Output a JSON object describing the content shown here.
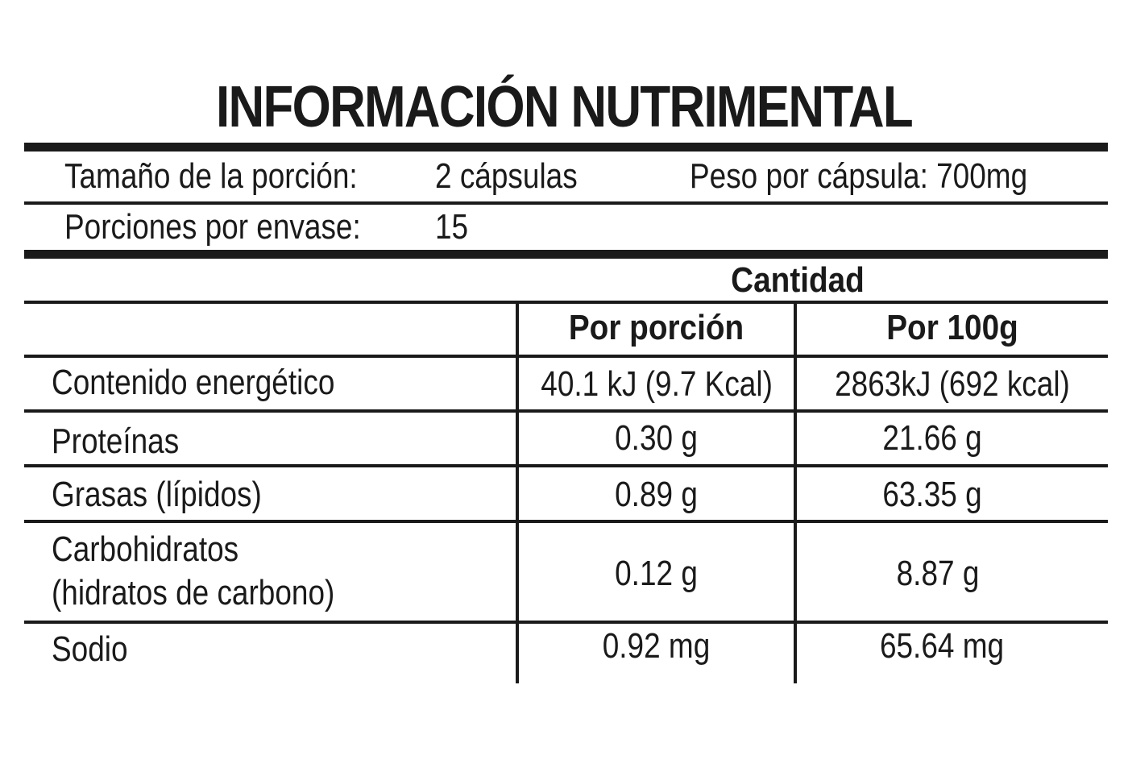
{
  "title": "INFORMACIÓN NUTRIMENTAL",
  "serving": {
    "size_label": "Tamaño de la porción:",
    "size_value": "2 cápsulas",
    "weight_text": "Peso por cápsula: 700mg",
    "servings_label": "Porciones por envase:",
    "servings_value": "15"
  },
  "table": {
    "group_header": "Cantidad",
    "columns": [
      "Por porción",
      "Por 100g"
    ],
    "rows": [
      {
        "name": "Contenido energético",
        "per_serving": "40.1 kJ (9.7 Kcal)",
        "per_100g": "2863kJ (692 kcal)"
      },
      {
        "name": "Proteínas",
        "per_serving": "0.30 g",
        "per_100g": "21.66 g"
      },
      {
        "name": "Grasas (lípidos)",
        "per_serving": "0.89 g",
        "per_100g": "63.35 g"
      },
      {
        "name_line1": "Carbohidratos",
        "name_line2": "(hidratos de carbono)",
        "per_serving": "0.12 g",
        "per_100g": "8.87 g"
      },
      {
        "name": "Sodio",
        "per_serving": "0.92 mg",
        "per_100g": "65.64 mg"
      }
    ]
  }
}
